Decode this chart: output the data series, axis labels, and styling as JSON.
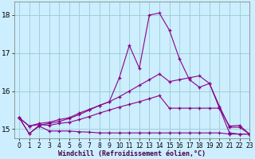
{
  "xlabel": "Windchill (Refroidissement éolien,°C)",
  "background_color": "#cceeff",
  "grid_color": "#99cccc",
  "line_color": "#880088",
  "xlim": [
    -0.5,
    23
  ],
  "ylim": [
    14.75,
    18.35
  ],
  "yticks": [
    15,
    16,
    17,
    18
  ],
  "xticks": [
    0,
    1,
    2,
    3,
    4,
    5,
    6,
    7,
    8,
    9,
    10,
    11,
    12,
    13,
    14,
    15,
    16,
    17,
    18,
    19,
    20,
    21,
    22,
    23
  ],
  "series": [
    [
      15.3,
      14.88,
      15.08,
      14.95,
      14.95,
      14.95,
      14.93,
      14.92,
      14.9,
      14.9,
      14.9,
      14.9,
      14.9,
      14.9,
      14.9,
      14.9,
      14.9,
      14.9,
      14.9,
      14.9,
      14.9,
      14.87,
      14.87,
      14.87
    ],
    [
      15.3,
      15.08,
      15.12,
      15.1,
      15.15,
      15.18,
      15.25,
      15.33,
      15.42,
      15.5,
      15.58,
      15.65,
      15.72,
      15.8,
      15.88,
      15.55,
      15.55,
      15.55,
      15.55,
      15.55,
      15.55,
      14.9,
      14.87,
      14.87
    ],
    [
      15.3,
      15.08,
      15.15,
      15.18,
      15.25,
      15.3,
      15.42,
      15.52,
      15.62,
      15.72,
      15.85,
      16.0,
      16.15,
      16.3,
      16.45,
      16.25,
      16.3,
      16.35,
      16.4,
      16.2,
      15.6,
      15.05,
      15.05,
      14.87
    ],
    [
      15.3,
      14.88,
      15.1,
      15.15,
      15.2,
      15.28,
      15.38,
      15.5,
      15.62,
      15.72,
      16.35,
      17.2,
      16.6,
      18.0,
      18.05,
      17.6,
      16.85,
      16.3,
      16.1,
      16.2,
      15.55,
      15.08,
      15.1,
      14.87
    ]
  ],
  "marker": "+",
  "markersize": 3.5,
  "linewidth": 0.8,
  "xlabel_fontsize": 6,
  "tick_fontsize": 5.5,
  "ytick_fontsize": 6.5
}
